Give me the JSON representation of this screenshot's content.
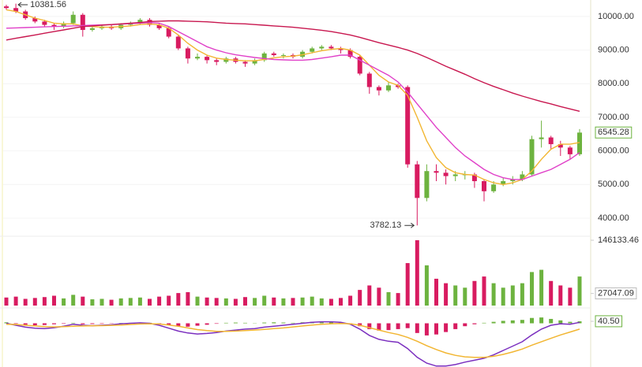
{
  "chart_data": [
    {
      "type": "candlestick",
      "open": [
        10300,
        10250,
        10150,
        9950,
        9850,
        9750,
        9700,
        9800,
        10050,
        9600,
        9650,
        9700,
        9650,
        9750,
        9800,
        9900,
        9750,
        9650,
        9400,
        9050,
        8750,
        8800,
        8700,
        8650,
        8750,
        8650,
        8600,
        8700,
        8900,
        8850,
        8850,
        8800,
        8950,
        9050,
        9100,
        9050,
        9000,
        8800,
        8300,
        7900,
        7800,
        7950,
        7900,
        5600,
        4600,
        5400,
        5350,
        5250,
        5300,
        5300,
        5100,
        4800,
        5000,
        5100,
        5150,
        5300,
        6350,
        6400,
        6200,
        6100,
        5900
      ],
      "high": [
        10350,
        10381.56,
        10200,
        10000,
        9900,
        9800,
        9850,
        10150,
        10100,
        9700,
        9750,
        9750,
        9800,
        9850,
        9950,
        9950,
        9800,
        9700,
        9450,
        9100,
        8900,
        8850,
        8750,
        8800,
        8800,
        8700,
        8750,
        8950,
        8950,
        8900,
        8900,
        9000,
        9100,
        9150,
        9150,
        9100,
        9050,
        8850,
        8350,
        7950,
        8050,
        8000,
        7950,
        5700,
        5600,
        5600,
        5450,
        5400,
        5400,
        5350,
        5150,
        5100,
        5200,
        5250,
        5400,
        6450,
        6900,
        6450,
        6300,
        6150,
        6650
      ],
      "low": [
        10200,
        10100,
        9900,
        9800,
        9700,
        9600,
        9650,
        9750,
        9400,
        9550,
        9600,
        9600,
        9600,
        9700,
        9750,
        9700,
        9600,
        9350,
        9000,
        8600,
        8700,
        8600,
        8550,
        8600,
        8600,
        8500,
        8550,
        8650,
        8800,
        8750,
        8750,
        8750,
        8900,
        9000,
        9000,
        8900,
        8750,
        8250,
        7700,
        7650,
        7750,
        7850,
        5500,
        3782.13,
        4500,
        5100,
        5000,
        5100,
        5150,
        4900,
        4500,
        4750,
        4950,
        5000,
        5100,
        5250,
        6100,
        6050,
        5850,
        5750,
        5850
      ],
      "close": [
        10250,
        10150,
        9950,
        9850,
        9750,
        9700,
        9800,
        10050,
        9600,
        9650,
        9700,
        9650,
        9750,
        9800,
        9900,
        9750,
        9650,
        9400,
        9050,
        8750,
        8800,
        8700,
        8650,
        8750,
        8650,
        8600,
        8700,
        8900,
        8850,
        8850,
        8800,
        8950,
        9050,
        9100,
        9050,
        9000,
        8800,
        8300,
        7900,
        7800,
        7950,
        7900,
        5600,
        4600,
        5400,
        5350,
        5250,
        5300,
        5300,
        5100,
        4800,
        5000,
        5100,
        5150,
        5300,
        6350,
        6400,
        6200,
        6100,
        5900,
        6545.28
      ],
      "up_color": "#6db33f",
      "down_color": "#d81b60",
      "series": [
        {
          "color": "#f2b632",
          "values": [
            10200,
            10150,
            10050,
            9950,
            9880,
            9800,
            9780,
            9780,
            9720,
            9700,
            9680,
            9680,
            9700,
            9720,
            9760,
            9780,
            9750,
            9650,
            9450,
            9200,
            9000,
            8850,
            8760,
            8720,
            8700,
            8680,
            8680,
            8720,
            8770,
            8800,
            8820,
            8860,
            8920,
            8980,
            9020,
            9050,
            9000,
            8850,
            8550,
            8250,
            8050,
            7950,
            7650,
            7000,
            6300,
            5800,
            5500,
            5350,
            5300,
            5280,
            5150,
            5050,
            5000,
            5050,
            5150,
            5400,
            5750,
            6050,
            6200,
            6200,
            6250
          ]
        },
        {
          "color": "#e040c8",
          "values": [
            9650,
            9660,
            9670,
            9680,
            9690,
            9700,
            9710,
            9720,
            9730,
            9740,
            9750,
            9760,
            9770,
            9790,
            9800,
            9820,
            9800,
            9700,
            9550,
            9400,
            9250,
            9100,
            9000,
            8920,
            8860,
            8820,
            8780,
            8750,
            8720,
            8710,
            8700,
            8700,
            8720,
            8760,
            8800,
            8850,
            8850,
            8700,
            8550,
            8400,
            8250,
            8050,
            7750,
            7400,
            7050,
            6700,
            6400,
            6100,
            5850,
            5650,
            5450,
            5300,
            5200,
            5150,
            5150,
            5250,
            5350,
            5450,
            5600,
            5750,
            5950
          ]
        },
        {
          "color": "#c8174f",
          "values": [
            9300,
            9350,
            9400,
            9450,
            9500,
            9550,
            9600,
            9650,
            9700,
            9720,
            9740,
            9760,
            9780,
            9800,
            9820,
            9850,
            9860,
            9870,
            9870,
            9860,
            9850,
            9840,
            9820,
            9800,
            9790,
            9780,
            9760,
            9740,
            9720,
            9700,
            9680,
            9650,
            9620,
            9590,
            9550,
            9500,
            9450,
            9380,
            9300,
            9220,
            9150,
            9080,
            9000,
            8900,
            8780,
            8650,
            8520,
            8400,
            8280,
            8150,
            8030,
            7920,
            7820,
            7720,
            7630,
            7550,
            7470,
            7400,
            7320,
            7250,
            7180
          ]
        }
      ],
      "ylim": [
        3460,
        10490
      ],
      "yticks": [
        {
          "value": 10000,
          "label": "10000.00"
        },
        {
          "value": 9000,
          "label": "9000.00"
        },
        {
          "value": 8000,
          "label": "8000.00"
        },
        {
          "value": 7000,
          "label": "7000.00"
        },
        {
          "value": 6000,
          "label": "6000.00"
        },
        {
          "value": 5000,
          "label": "5000.00"
        },
        {
          "value": 4000,
          "label": "4000.00"
        }
      ],
      "grid": true
    },
    {
      "type": "bar",
      "values": [
        18000,
        20000,
        15000,
        17000,
        19000,
        22000,
        16000,
        24000,
        20000,
        14000,
        15000,
        13000,
        16000,
        17000,
        18000,
        15000,
        20000,
        22000,
        28000,
        30000,
        20000,
        18000,
        17000,
        16000,
        15000,
        19000,
        17000,
        22000,
        18000,
        16000,
        17000,
        18000,
        20000,
        16000,
        15000,
        17000,
        22000,
        35000,
        45000,
        40000,
        30000,
        28000,
        95000,
        146133.46,
        90000,
        60000,
        50000,
        45000,
        40000,
        55000,
        65000,
        50000,
        40000,
        45000,
        50000,
        75000,
        80000,
        55000,
        45000,
        40000,
        65000
      ],
      "ylim": [
        0,
        155000
      ],
      "yticks": [
        146133.46,
        27047.09
      ]
    },
    {
      "type": "macd",
      "histogram": [
        20,
        -10,
        -30,
        -40,
        -35,
        -20,
        -10,
        10,
        -20,
        -15,
        -10,
        -5,
        5,
        10,
        15,
        10,
        -20,
        -40,
        -60,
        -70,
        -50,
        -30,
        -10,
        10,
        15,
        10,
        5,
        15,
        20,
        15,
        10,
        20,
        30,
        35,
        30,
        20,
        -10,
        -60,
        -120,
        -150,
        -140,
        -120,
        -100,
        -200,
        -250,
        -230,
        -180,
        -120,
        -60,
        -20,
        10,
        30,
        50,
        60,
        70,
        110,
        120,
        90,
        60,
        30,
        40.5
      ],
      "series": [
        {
          "color": "#7b2fbf",
          "values": [
            0,
            -40,
            -80,
            -100,
            -110,
            -90,
            -60,
            -20,
            -40,
            -50,
            -40,
            -30,
            -10,
            0,
            10,
            0,
            -40,
            -100,
            -160,
            -200,
            -220,
            -210,
            -190,
            -160,
            -140,
            -120,
            -110,
            -80,
            -60,
            -40,
            -20,
            0,
            20,
            30,
            30,
            20,
            -20,
            -120,
            -250,
            -330,
            -370,
            -390,
            -520,
            -700,
            -820,
            -880,
            -880,
            -850,
            -800,
            -760,
            -720,
            -650,
            -560,
            -470,
            -380,
            -240,
            -120,
            -40,
            -10,
            -20,
            20
          ]
        },
        {
          "color": "#f2b632",
          "values": [
            -20,
            -25,
            -40,
            -55,
            -70,
            -75,
            -70,
            -60,
            -55,
            -50,
            -48,
            -42,
            -35,
            -25,
            -15,
            -10,
            -15,
            -35,
            -60,
            -95,
            -130,
            -150,
            -165,
            -165,
            -160,
            -150,
            -140,
            -125,
            -110,
            -95,
            -75,
            -55,
            -35,
            -20,
            -10,
            -5,
            -10,
            -40,
            -90,
            -140,
            -190,
            -230,
            -290,
            -370,
            -460,
            -540,
            -610,
            -660,
            -690,
            -700,
            -700,
            -680,
            -640,
            -590,
            -530,
            -450,
            -380,
            -310,
            -240,
            -180,
            -120
          ]
        }
      ],
      "ylim": [
        -900,
        300
      ],
      "yticks": [
        {
          "value": 40.5,
          "label": "40.50"
        }
      ]
    }
  ]
}
